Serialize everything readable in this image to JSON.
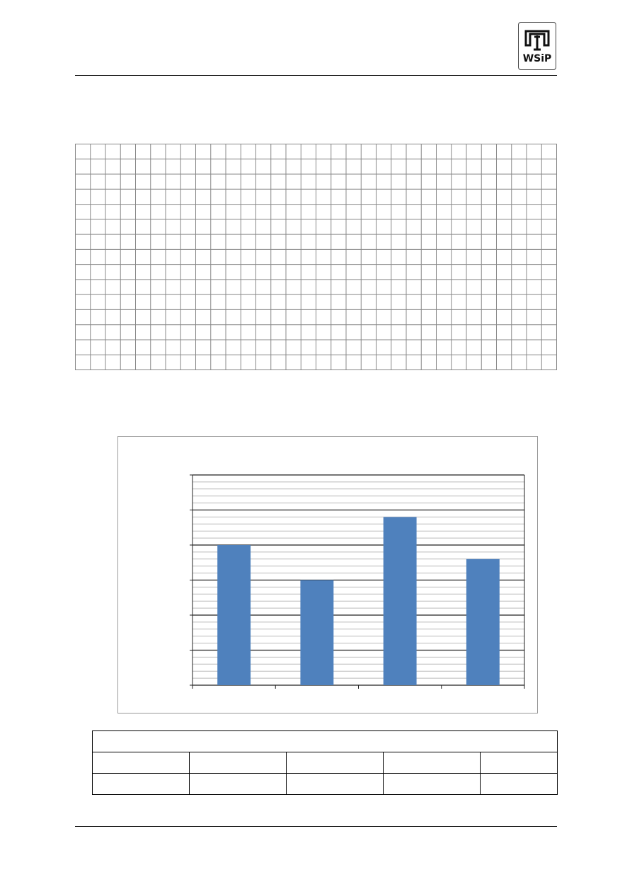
{
  "header": {
    "logo_text": "WSiP"
  },
  "worksheet_grid": {
    "columns": 32,
    "rows": 15
  },
  "chart_data": {
    "type": "bar",
    "categories": [
      "",
      "",
      "",
      ""
    ],
    "values": [
      20,
      15,
      24,
      18
    ],
    "ylim": [
      0,
      30
    ],
    "major_step": 5,
    "minor_step": 1,
    "grid": true,
    "title": "",
    "xlabel": "",
    "ylabel": "",
    "bar_color": "#4f81bd"
  },
  "answer_table": {
    "header": "",
    "rows": [
      [
        "",
        "",
        "",
        "",
        ""
      ],
      [
        "",
        "",
        "",
        "",
        ""
      ]
    ]
  }
}
